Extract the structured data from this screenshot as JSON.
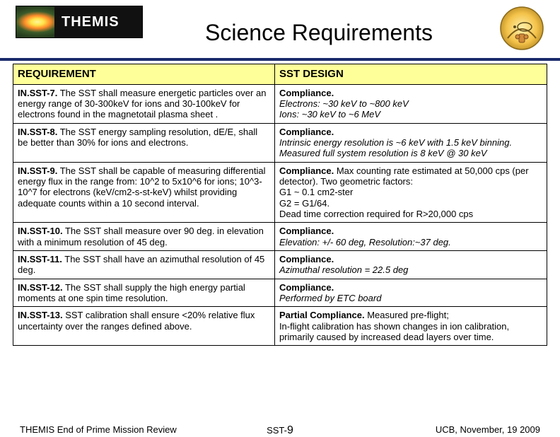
{
  "header": {
    "brand": "THEMIS",
    "title": "Science Requirements"
  },
  "table": {
    "headers": {
      "requirement": "REQUIREMENT",
      "design": "SST DESIGN"
    },
    "rows": [
      {
        "req_id": "IN.SST-7.",
        "req_body": " The SST shall measure energetic particles over an energy range of 30-300keV for ions and 30-100keV for electrons found in the magnetotail plasma sheet .",
        "des_bold": "Compliance.",
        "des_body": "\nElectrons: ~30 keV to ~800 keV\nIons:  ~30 keV to ~6 MeV",
        "des_italic": true
      },
      {
        "req_id": "IN.SST-8.",
        "req_body": " The SST energy sampling resolution, dE/E, shall be better than 30% for ions and electrons.",
        "des_bold": "Compliance.",
        "des_body": "\nIntrinsic energy resolution is ~6 keV with 1.5 keV binning.\nMeasured full system resolution is 8 keV @ 30 keV",
        "des_italic": true
      },
      {
        "req_id": "IN.SST-9.",
        "req_body": " The SST shall be capable of measuring differential energy flux in the range from: 10^2 to 5x10^6 for ions; 10^3-10^7 for electrons (keV/cm2-s-st-keV) whilst providing adequate counts within a 10 second interval.",
        "des_bold": "Compliance.",
        "des_body": " Max counting rate estimated at 50,000 cps (per detector).  Two geometric factors:\nG1 ~ 0.1 cm2-ster\nG2 = G1/64.\nDead time correction required for R>20,000 cps",
        "des_italic": false
      },
      {
        "req_id": "IN.SST-10.",
        "req_body": " The SST shall measure over 90 deg. in elevation with a minimum resolution of 45 deg.",
        "des_bold": "Compliance.",
        "des_body": "\nElevation: +/- 60 deg,  Resolution:~37 deg.",
        "des_italic": true
      },
      {
        "req_id": "IN.SST-11.",
        "req_body": " The SST shall have an azimuthal resolution of 45 deg.",
        "des_bold": "Compliance.",
        "des_body": "\nAzimuthal resolution = 22.5 deg",
        "des_italic": true
      },
      {
        "req_id": "IN.SST-12.",
        "req_body": " The SST shall supply the high energy partial moments at one spin time resolution.",
        "des_bold": "Compliance.",
        "des_body": "\nPerformed by ETC board",
        "des_italic": true
      },
      {
        "req_id": "IN.SST-13.",
        "req_body": " SST calibration shall ensure <20% relative flux uncertainty over the ranges defined above.",
        "des_bold": "Partial Compliance.",
        "des_body": " Measured pre-flight;\nIn-flight calibration has shown changes in ion calibration, primarily caused by increased dead layers over time.",
        "des_italic": false
      }
    ]
  },
  "footer": {
    "left": "THEMIS End of Prime Mission Review",
    "center_label": "SST-",
    "center_page": "9",
    "right": "UCB, November, 19 2009"
  },
  "colors": {
    "header_rule": "#1a2a6c",
    "header_bg": "#ffff99"
  }
}
